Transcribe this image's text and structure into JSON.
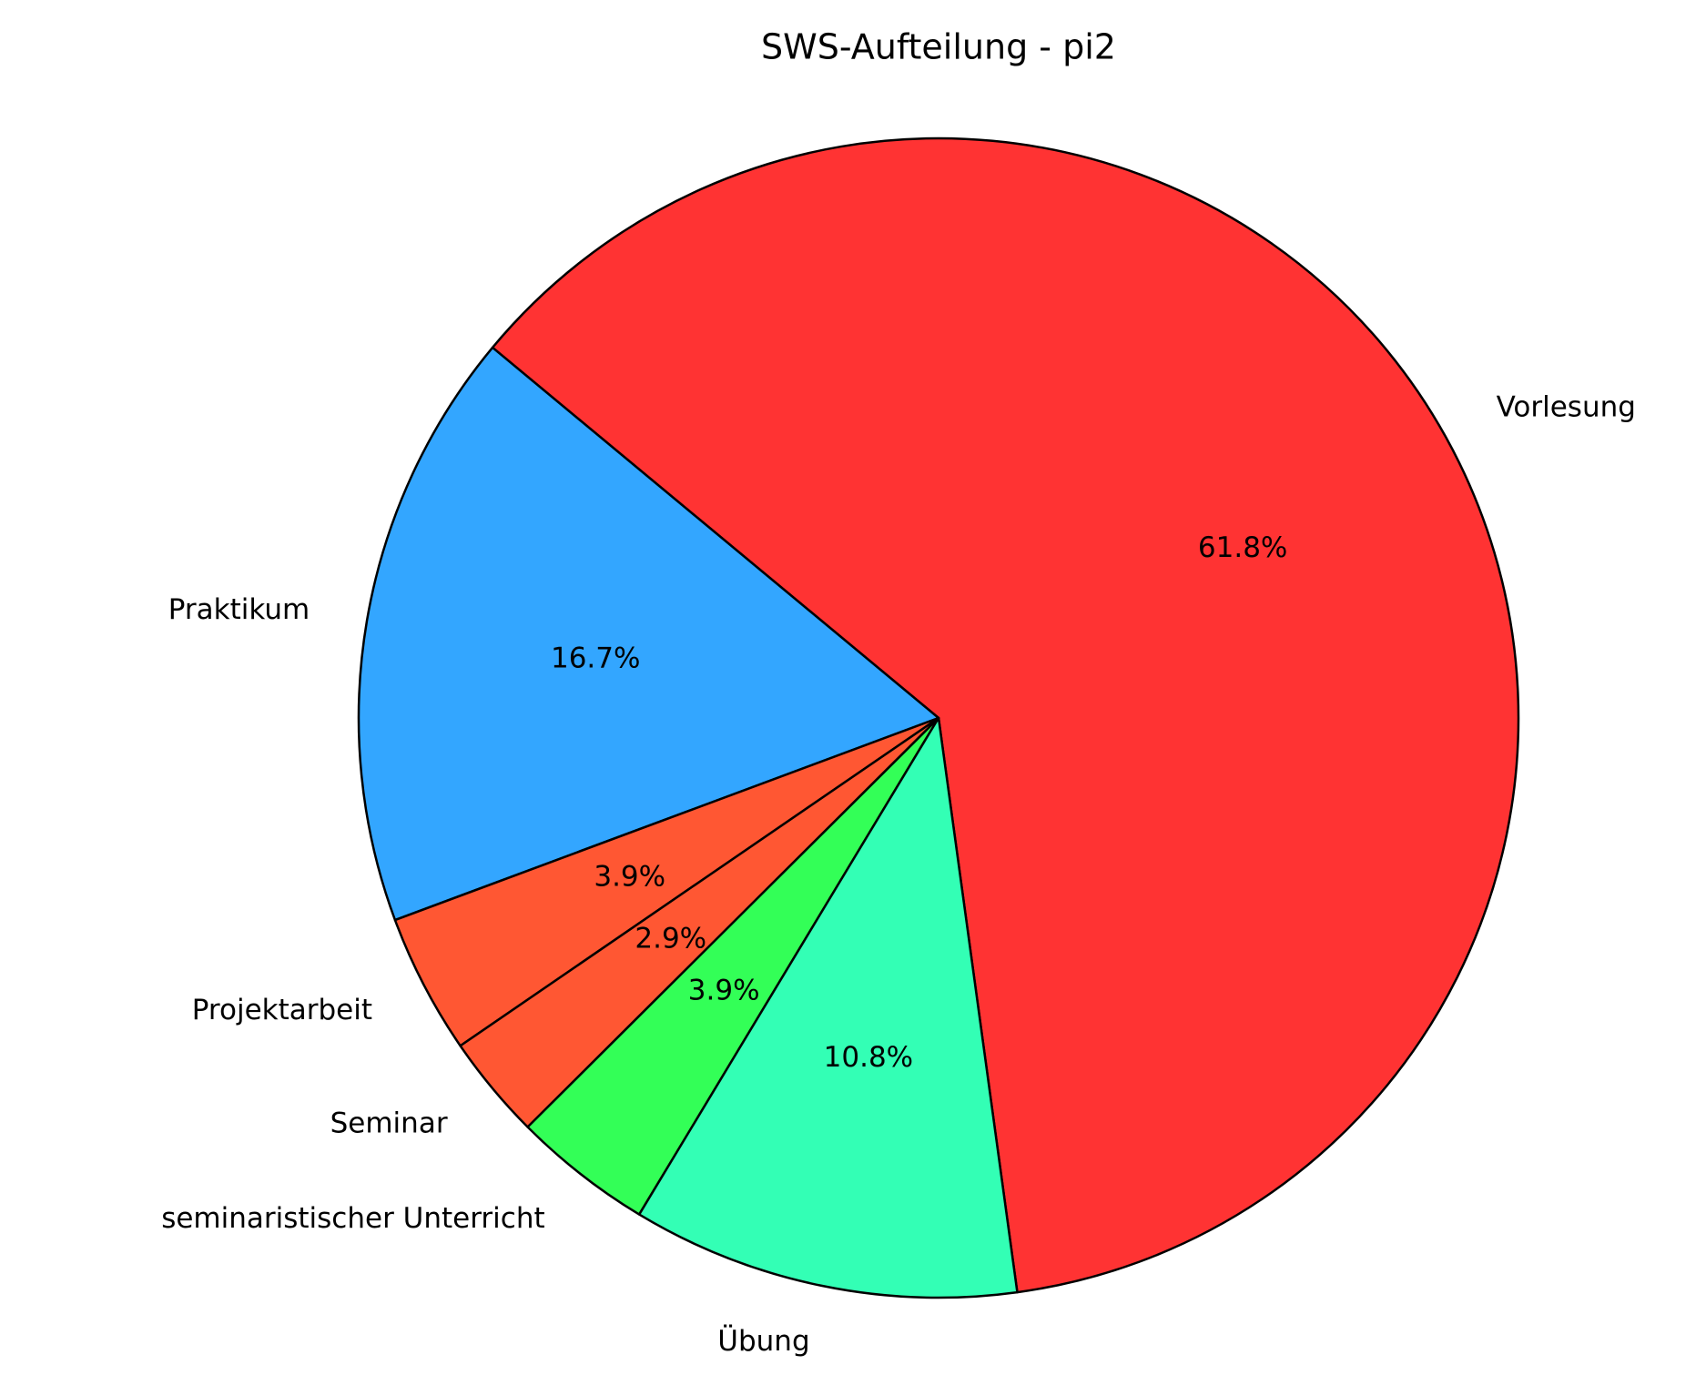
{
  "chart_data": {
    "type": "pie",
    "title": "SWS-Aufteilung - pi2",
    "categories": [
      "Vorlesung",
      "Praktikum",
      "Projektarbeit",
      "Seminar",
      "seminaristischer Unterricht",
      "Übung"
    ],
    "values": [
      61.8,
      16.7,
      3.9,
      2.9,
      3.9,
      10.8
    ],
    "value_labels": [
      "61.8%",
      "16.7%",
      "3.9%",
      "2.9%",
      "3.9%",
      "10.8%"
    ],
    "colors": [
      "#ff3333",
      "#33a6ff",
      "#ff5733",
      "#ff5733",
      "#33ff57",
      "#33ffb5"
    ]
  }
}
